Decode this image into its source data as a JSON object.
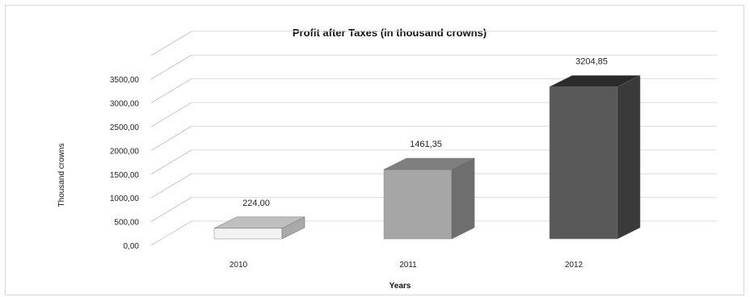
{
  "chart_data": {
    "type": "bar",
    "title": "Profit after Taxes (in thousand crowns)",
    "xlabel": "Years",
    "ylabel": "Thousand crowns",
    "categories": [
      "2010",
      "2011",
      "2012"
    ],
    "values": [
      224.0,
      1461.35,
      3204.85
    ],
    "data_labels": [
      "224,00",
      "1461,35",
      "3204,85"
    ],
    "y_ticks": [
      "0,00",
      "500,00",
      "1000,00",
      "1500,00",
      "2000,00",
      "2500,00",
      "3000,00",
      "3500,00"
    ],
    "y_tick_values": [
      0,
      500,
      1000,
      1500,
      2000,
      2500,
      3000,
      3500
    ],
    "ylim": [
      0,
      3500
    ],
    "grid": true,
    "style": "3d-column",
    "colors": {
      "2010": {
        "front": "#f2f2f2",
        "side": "#a9a9a9",
        "top": "#bfbfbf"
      },
      "2011": {
        "front": "#a6a6a6",
        "side": "#6e6e6e",
        "top": "#7f7f7f"
      },
      "2012": {
        "front": "#595959",
        "side": "#3a3a3a",
        "top": "#2b2b2b"
      }
    }
  }
}
